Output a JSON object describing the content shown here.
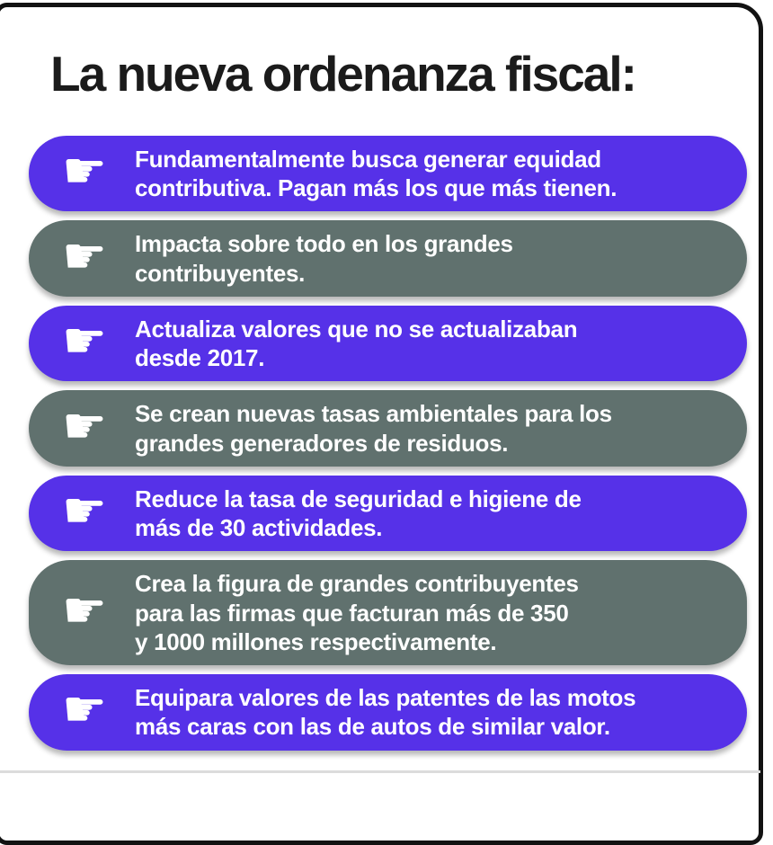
{
  "title": "La nueva ordenanza fiscal:",
  "icon": {
    "name": "pointing-hand-icon",
    "glyph": "☛"
  },
  "colors": {
    "purple": "#5631E8",
    "gray": "#60716E",
    "text_on_pill": "#ffffff",
    "title_text": "#1b1b1b",
    "border": "#121212"
  },
  "items": [
    {
      "color": "purple",
      "text": "Fundamentalmente busca generar equidad\ncontributiva. Pagan más los que más tienen."
    },
    {
      "color": "gray",
      "text": "Impacta sobre todo en los grandes\ncontribuyentes."
    },
    {
      "color": "purple",
      "text": "Actualiza valores que no se actualizaban\ndesde 2017."
    },
    {
      "color": "gray",
      "text": "Se crean nuevas tasas ambientales para los\ngrandes generadores de residuos."
    },
    {
      "color": "purple",
      "text": "Reduce la tasa de seguridad e higiene de\nmás de 30 actividades."
    },
    {
      "color": "gray",
      "text": "Crea la figura de grandes contribuyentes\npara las firmas que facturan más de 350\ny 1000 millones respectivamente."
    },
    {
      "color": "purple",
      "text": "Equipara valores de las patentes de las motos\nmás caras con las de autos de similar valor."
    }
  ]
}
